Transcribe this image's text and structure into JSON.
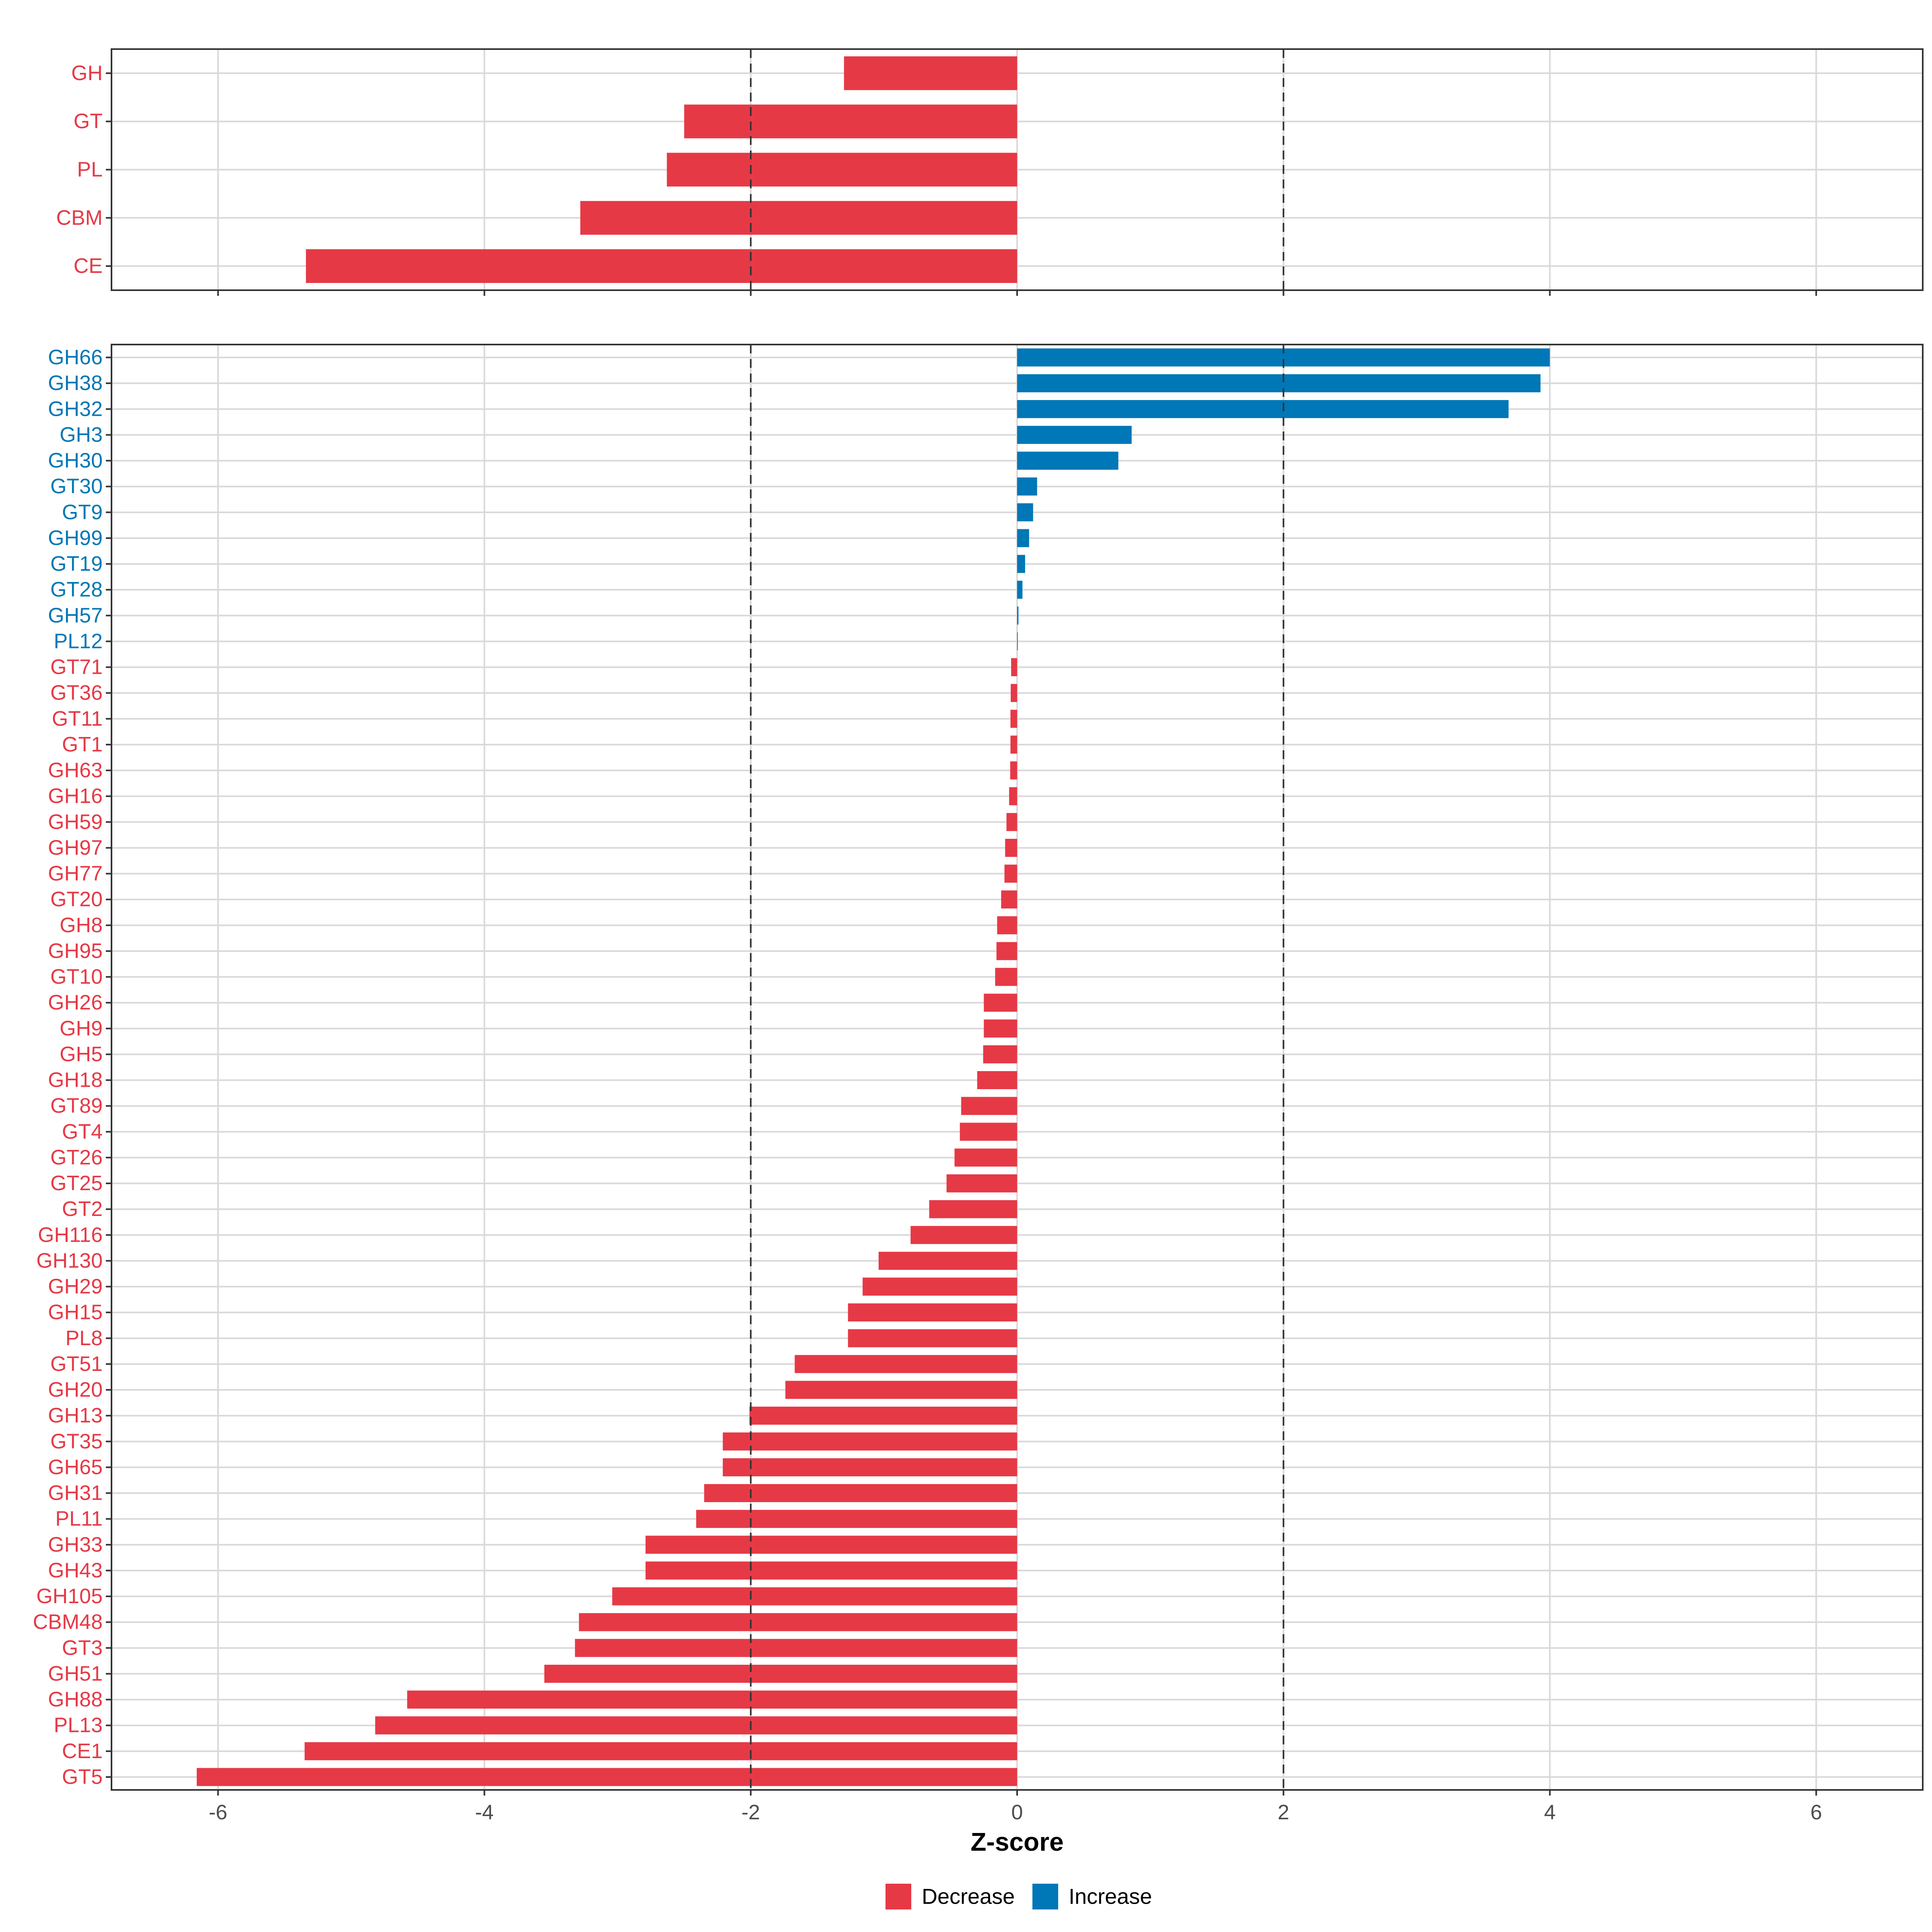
{
  "chart_data": [
    {
      "panel": "top",
      "type": "bar",
      "orientation": "horizontal",
      "categories": [
        "GH",
        "GT",
        "PL",
        "CBM",
        "CE"
      ],
      "values": [
        -1.3,
        -2.5,
        -2.63,
        -3.28,
        -5.34
      ],
      "groups": [
        "Decrease",
        "Decrease",
        "Decrease",
        "Decrease",
        "Decrease"
      ],
      "xlim": [
        -6.8,
        6.8
      ],
      "xticks": [
        -6,
        -4,
        -2,
        0,
        2,
        4,
        6
      ],
      "xtick_labels": [
        "-6",
        "-4",
        "-2",
        "0",
        "2",
        "4",
        "6"
      ],
      "reference_lines": [
        -2,
        2
      ],
      "grid": true
    },
    {
      "panel": "bottom",
      "type": "bar",
      "orientation": "horizontal",
      "categories": [
        "GH66",
        "GH38",
        "GH32",
        "GH3",
        "GH30",
        "GT30",
        "GT9",
        "GH99",
        "GT19",
        "GT28",
        "GH57",
        "PL12",
        "GT71",
        "GT36",
        "GT11",
        "GT1",
        "GH63",
        "GH16",
        "GH59",
        "GH97",
        "GH77",
        "GT20",
        "GH8",
        "GH95",
        "GT10",
        "GH26",
        "GH9",
        "GH5",
        "GH18",
        "GT89",
        "GT4",
        "GT26",
        "GT25",
        "GT2",
        "GH116",
        "GH130",
        "GH29",
        "GH15",
        "PL8",
        "GT51",
        "GH20",
        "GH13",
        "GT35",
        "GH65",
        "GH31",
        "PL11",
        "GH33",
        "GH43",
        "GH105",
        "CBM48",
        "GT3",
        "GH51",
        "GH88",
        "PL13",
        "CE1",
        "GT5"
      ],
      "values": [
        4.0,
        3.93,
        3.69,
        0.86,
        0.76,
        0.15,
        0.12,
        0.09,
        0.06,
        0.04,
        0.01,
        0.005,
        -0.045,
        -0.048,
        -0.05,
        -0.05,
        -0.052,
        -0.06,
        -0.08,
        -0.09,
        -0.095,
        -0.12,
        -0.15,
        -0.155,
        -0.165,
        -0.25,
        -0.25,
        -0.255,
        -0.3,
        -0.42,
        -0.43,
        -0.47,
        -0.53,
        -0.66,
        -0.8,
        -1.04,
        -1.16,
        -1.27,
        -1.27,
        -1.67,
        -1.74,
        -2.01,
        -2.21,
        -2.21,
        -2.35,
        -2.41,
        -2.79,
        -2.79,
        -3.04,
        -3.29,
        -3.32,
        -3.55,
        -4.58,
        -4.82,
        -5.35,
        -6.16
      ],
      "groups": [
        "Increase",
        "Increase",
        "Increase",
        "Increase",
        "Increase",
        "Increase",
        "Increase",
        "Increase",
        "Increase",
        "Increase",
        "Increase",
        "Increase",
        "Decrease",
        "Decrease",
        "Decrease",
        "Decrease",
        "Decrease",
        "Decrease",
        "Decrease",
        "Decrease",
        "Decrease",
        "Decrease",
        "Decrease",
        "Decrease",
        "Decrease",
        "Decrease",
        "Decrease",
        "Decrease",
        "Decrease",
        "Decrease",
        "Decrease",
        "Decrease",
        "Decrease",
        "Decrease",
        "Decrease",
        "Decrease",
        "Decrease",
        "Decrease",
        "Decrease",
        "Decrease",
        "Decrease",
        "Decrease",
        "Decrease",
        "Decrease",
        "Decrease",
        "Decrease",
        "Decrease",
        "Decrease",
        "Decrease",
        "Decrease",
        "Decrease",
        "Decrease",
        "Decrease",
        "Decrease",
        "Decrease",
        "Decrease"
      ],
      "xlim": [
        -6.8,
        6.8
      ],
      "xticks": [
        -6,
        -4,
        -2,
        0,
        2,
        4,
        6
      ],
      "xtick_labels": [
        "-6",
        "-4",
        "-2",
        "0",
        "2",
        "4",
        "6"
      ],
      "reference_lines": [
        -2,
        2
      ],
      "grid": true,
      "xlabel": "Z-score"
    }
  ],
  "legend": {
    "items": [
      {
        "label": "Decrease",
        "color": "#E63946"
      },
      {
        "label": "Increase",
        "color": "#0077B6"
      }
    ],
    "placement": "bottom-center"
  },
  "colors": {
    "Decrease": "#E63946",
    "Increase": "#0077B6",
    "grid": "#d9d9d9",
    "panel_border": "#333333",
    "reference_line": "#333333"
  }
}
